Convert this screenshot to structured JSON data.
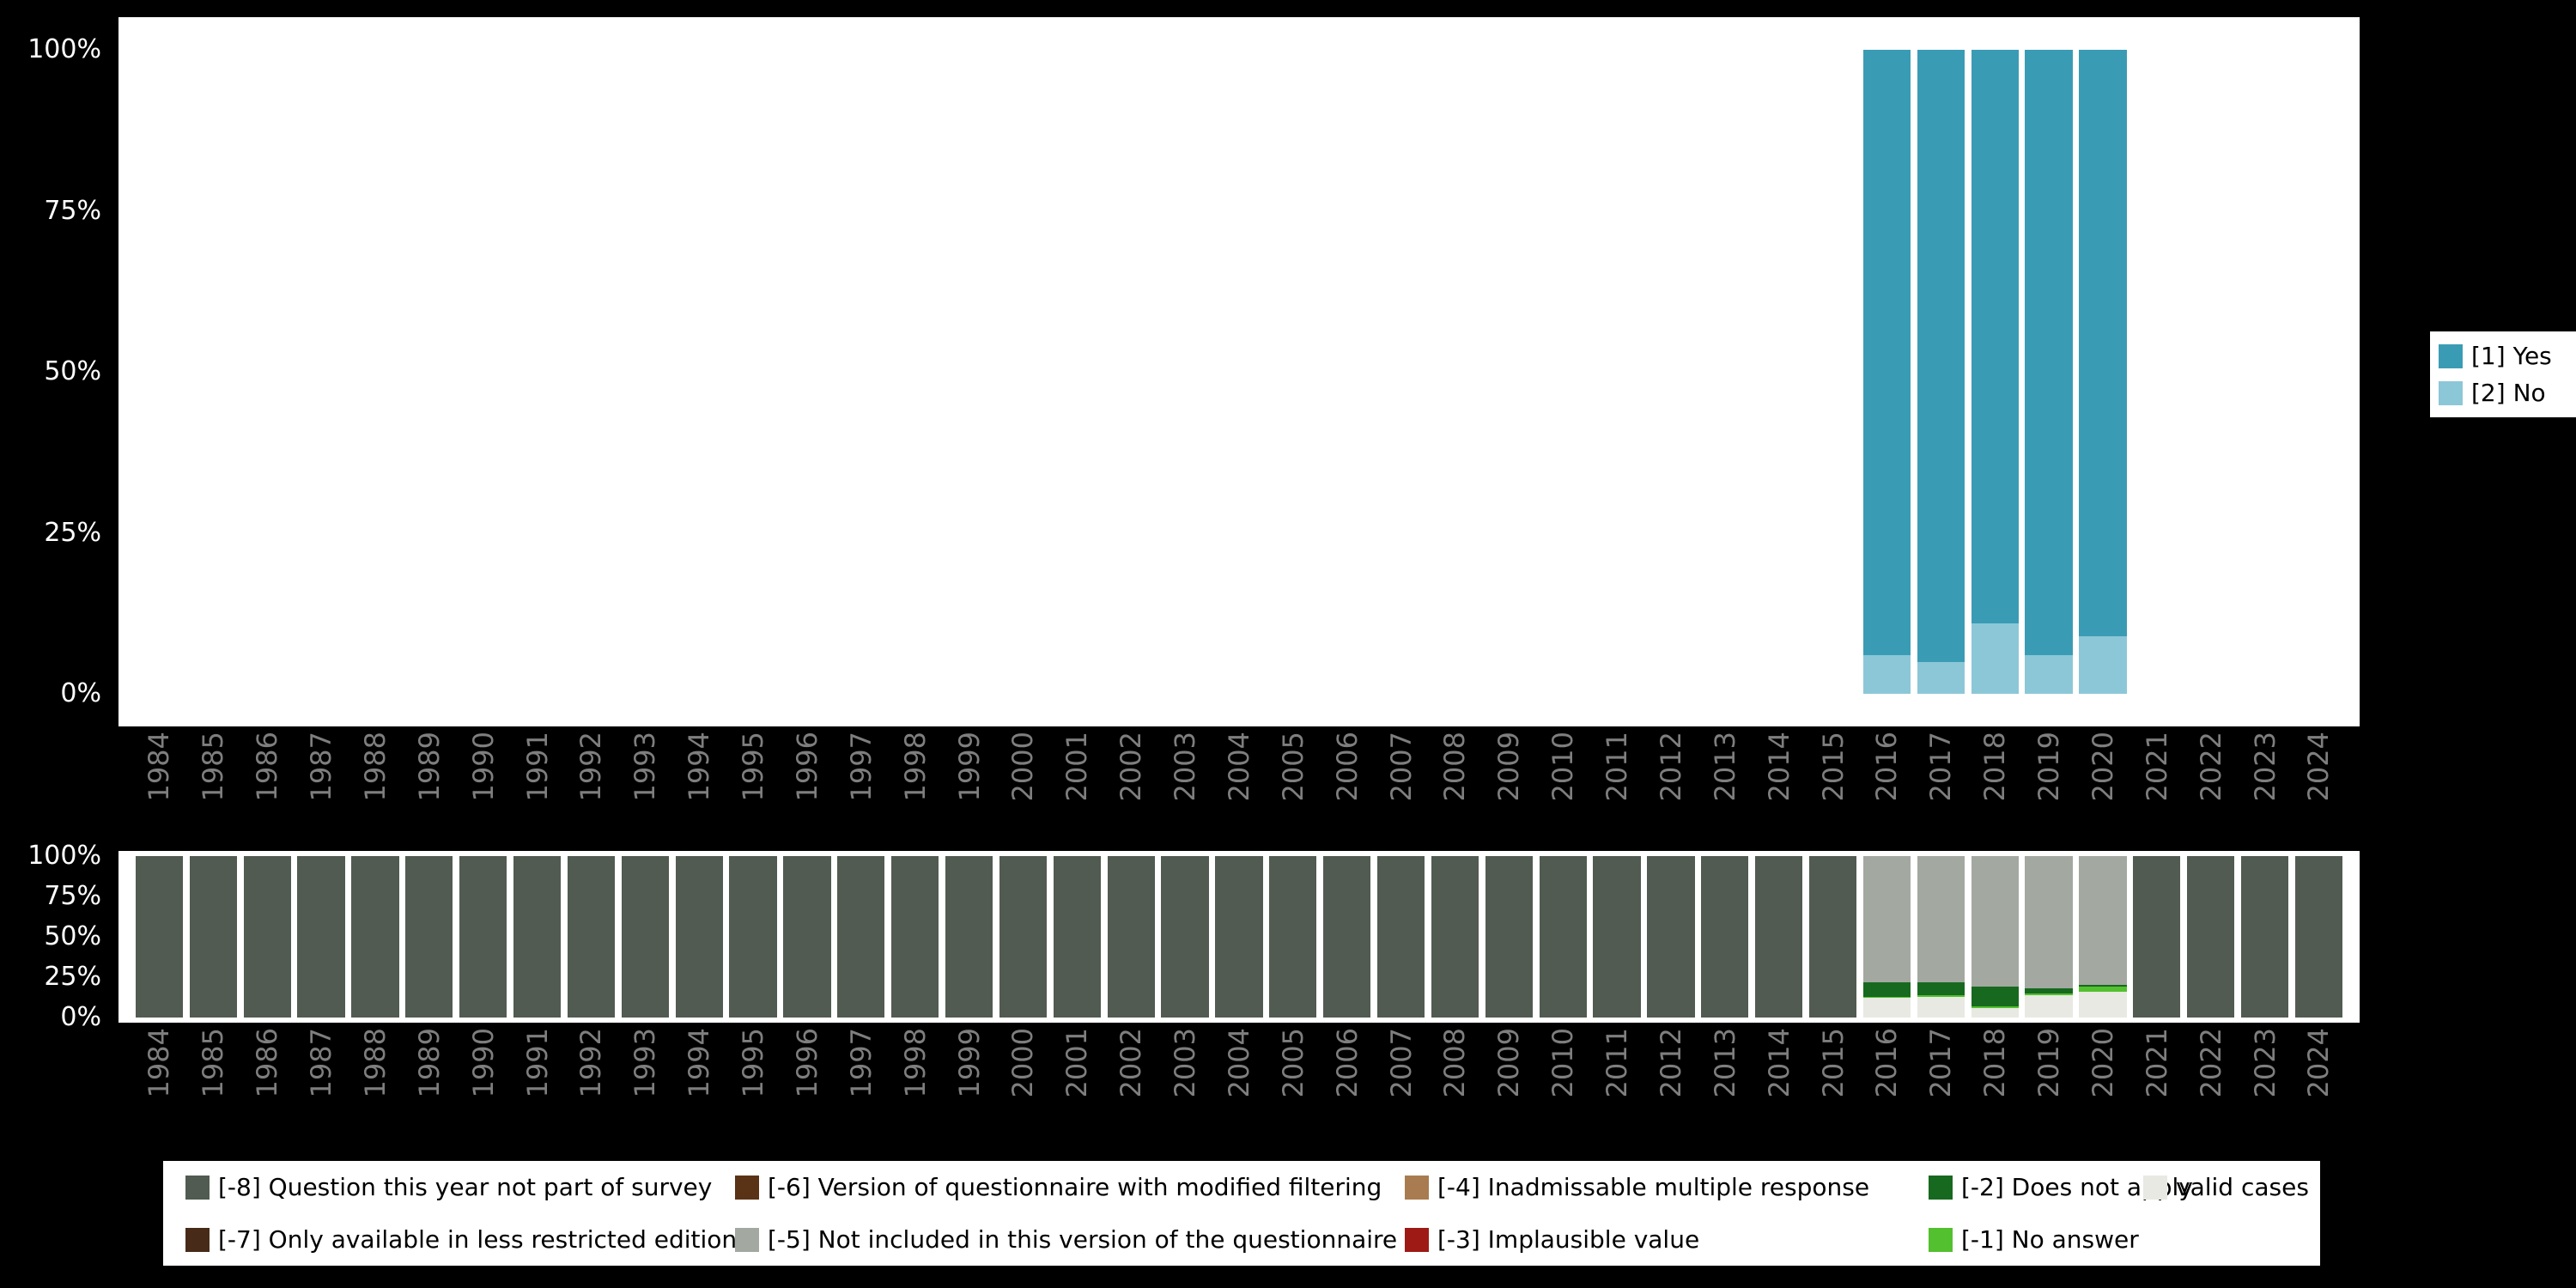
{
  "colors": {
    "background": "#000000",
    "plot_background": "#ffffff",
    "axis_text_x": "#7e7e7e",
    "axis_text_y": "#ffffff",
    "yes": "#3a9cb4",
    "no": "#8cc7d7",
    "question_not_part": "#515b51",
    "less_restricted": "#472a18",
    "modified_filtering": "#5a3317",
    "not_included": "#a3a8a1",
    "inadmissable": "#a87c50",
    "implausible": "#9e1a15",
    "does_not_apply": "#17691f",
    "no_answer": "#53c02f",
    "valid_cases": "#e8e9e2"
  },
  "chart_data": [
    {
      "type": "bar",
      "stacked": true,
      "unit": "percent",
      "title": "",
      "xlabel": "",
      "ylabel": "",
      "ylim": [
        0,
        100
      ],
      "grid": false,
      "legend_position": "right",
      "x": [
        "1984",
        "1985",
        "1986",
        "1987",
        "1988",
        "1989",
        "1990",
        "1991",
        "1992",
        "1993",
        "1994",
        "1995",
        "1996",
        "1997",
        "1998",
        "1999",
        "2000",
        "2001",
        "2002",
        "2003",
        "2004",
        "2005",
        "2006",
        "2007",
        "2008",
        "2009",
        "2010",
        "2011",
        "2012",
        "2013",
        "2014",
        "2015",
        "2016",
        "2017",
        "2018",
        "2019",
        "2020",
        "2021",
        "2022",
        "2023",
        "2024"
      ],
      "yticks": [
        {
          "label": "100%",
          "value": 100
        },
        {
          "label": "75%",
          "value": 75
        },
        {
          "label": "50%",
          "value": 50
        },
        {
          "label": "25%",
          "value": 25
        },
        {
          "label": "0%",
          "value": 0
        }
      ],
      "series": [
        {
          "name": "[1] Yes",
          "color": "#3a9cb4",
          "values": [
            0,
            0,
            0,
            0,
            0,
            0,
            0,
            0,
            0,
            0,
            0,
            0,
            0,
            0,
            0,
            0,
            0,
            0,
            0,
            0,
            0,
            0,
            0,
            0,
            0,
            0,
            0,
            0,
            0,
            0,
            0,
            0,
            94,
            95,
            89,
            94,
            91,
            0,
            0,
            0,
            0
          ]
        },
        {
          "name": "[2] No",
          "color": "#8cc7d7",
          "values": [
            0,
            0,
            0,
            0,
            0,
            0,
            0,
            0,
            0,
            0,
            0,
            0,
            0,
            0,
            0,
            0,
            0,
            0,
            0,
            0,
            0,
            0,
            0,
            0,
            0,
            0,
            0,
            0,
            0,
            0,
            0,
            0,
            6,
            5,
            11,
            6,
            9,
            0,
            0,
            0,
            0
          ]
        }
      ],
      "legend": [
        {
          "name": "[1] Yes",
          "color": "#3a9cb4"
        },
        {
          "name": "[2] No",
          "color": "#8cc7d7"
        }
      ]
    },
    {
      "type": "bar",
      "stacked": true,
      "unit": "percent",
      "title": "",
      "xlabel": "",
      "ylabel": "",
      "ylim": [
        0,
        100
      ],
      "grid": false,
      "legend_position": "bottom",
      "x": [
        "1984",
        "1985",
        "1986",
        "1987",
        "1988",
        "1989",
        "1990",
        "1991",
        "1992",
        "1993",
        "1994",
        "1995",
        "1996",
        "1997",
        "1998",
        "1999",
        "2000",
        "2001",
        "2002",
        "2003",
        "2004",
        "2005",
        "2006",
        "2007",
        "2008",
        "2009",
        "2010",
        "2011",
        "2012",
        "2013",
        "2014",
        "2015",
        "2016",
        "2017",
        "2018",
        "2019",
        "2020",
        "2021",
        "2022",
        "2023",
        "2024"
      ],
      "yticks": [
        {
          "label": "100%",
          "value": 100
        },
        {
          "label": "75%",
          "value": 75
        },
        {
          "label": "50%",
          "value": 50
        },
        {
          "label": "25%",
          "value": 25
        },
        {
          "label": "0%",
          "value": 0
        }
      ],
      "series": [
        {
          "name": "[-8] Question this year not part of survey",
          "color": "#515b51",
          "values": [
            100,
            100,
            100,
            100,
            100,
            100,
            100,
            100,
            100,
            100,
            100,
            100,
            100,
            100,
            100,
            100,
            100,
            100,
            100,
            100,
            100,
            100,
            100,
            100,
            100,
            100,
            100,
            100,
            100,
            100,
            100,
            100,
            0,
            0,
            0,
            0,
            0,
            100,
            100,
            100,
            100
          ]
        },
        {
          "name": "[-5] Not included in this version of the questionnaire",
          "color": "#a3a8a1",
          "values": [
            0,
            0,
            0,
            0,
            0,
            0,
            0,
            0,
            0,
            0,
            0,
            0,
            0,
            0,
            0,
            0,
            0,
            0,
            0,
            0,
            0,
            0,
            0,
            0,
            0,
            0,
            0,
            0,
            0,
            0,
            0,
            0,
            78,
            78,
            81,
            82,
            80,
            0,
            0,
            0,
            0
          ]
        },
        {
          "name": "[-2] Does not apply",
          "color": "#17691f",
          "values": [
            0,
            0,
            0,
            0,
            0,
            0,
            0,
            0,
            0,
            0,
            0,
            0,
            0,
            0,
            0,
            0,
            0,
            0,
            0,
            0,
            0,
            0,
            0,
            0,
            0,
            0,
            0,
            0,
            0,
            0,
            0,
            0,
            9,
            8,
            12,
            3,
            1,
            0,
            0,
            0,
            0
          ]
        },
        {
          "name": "[-1] No answer",
          "color": "#53c02f",
          "values": [
            0,
            0,
            0,
            0,
            0,
            0,
            0,
            0,
            0,
            0,
            0,
            0,
            0,
            0,
            0,
            0,
            0,
            0,
            0,
            0,
            0,
            0,
            0,
            0,
            0,
            0,
            0,
            0,
            0,
            0,
            0,
            0,
            1,
            1,
            1,
            1,
            3,
            0,
            0,
            0,
            0
          ]
        },
        {
          "name": "valid cases",
          "color": "#e8e9e2",
          "values": [
            0,
            0,
            0,
            0,
            0,
            0,
            0,
            0,
            0,
            0,
            0,
            0,
            0,
            0,
            0,
            0,
            0,
            0,
            0,
            0,
            0,
            0,
            0,
            0,
            0,
            0,
            0,
            0,
            0,
            0,
            0,
            0,
            12,
            13,
            6,
            14,
            16,
            0,
            0,
            0,
            0
          ]
        }
      ],
      "legend": [
        {
          "name": "[-8] Question this year not part of survey",
          "color": "#515b51"
        },
        {
          "name": "[-6] Version of questionnaire with modified filtering",
          "color": "#5a3317"
        },
        {
          "name": "[-4] Inadmissable multiple response",
          "color": "#a87c50"
        },
        {
          "name": "[-2] Does not apply",
          "color": "#17691f"
        },
        {
          "name": "valid cases",
          "color": "#e8e9e2"
        },
        {
          "name": "[-7] Only available in less restricted edition",
          "color": "#472a18"
        },
        {
          "name": "[-5] Not included in this version of the questionnaire",
          "color": "#a3a8a1"
        },
        {
          "name": "[-3] Implausible value",
          "color": "#9e1a15"
        },
        {
          "name": "[-1] No answer",
          "color": "#53c02f"
        }
      ]
    }
  ]
}
